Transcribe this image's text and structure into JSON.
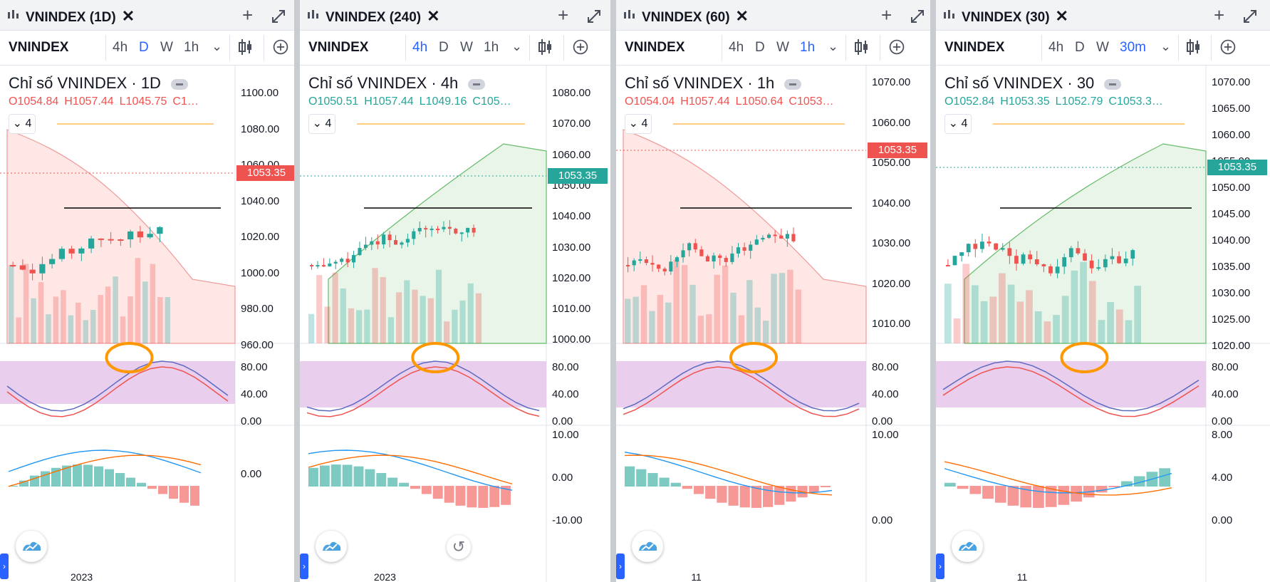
{
  "panels": [
    {
      "tab_title": "VNINDEX (1D)",
      "symbol": "VNINDEX",
      "timeframes": [
        "4h",
        "D",
        "W",
        "1h"
      ],
      "active_timeframe": "D",
      "legend_title": "Chỉ số VNINDEX · 1D",
      "ohlc": {
        "o": "O1054.84",
        "h": "H1057.44",
        "l": "L1045.75",
        "c": "C1…"
      },
      "ohlc_color": "#ef5350",
      "indicator_count": "4",
      "price_axis": [
        "1100.00",
        "1080.00",
        "1060.00",
        "1040.00",
        "1020.00",
        "1000.00",
        "980.00",
        "960.00"
      ],
      "price_label": "1053.35",
      "price_label_color": "#ef5350",
      "stoch_axis": [
        "80.00",
        "40.00",
        "0.00"
      ],
      "macd_axis": [
        "0.00"
      ],
      "time_axis": "2023"
    },
    {
      "tab_title": "VNINDEX (240)",
      "symbol": "VNINDEX",
      "timeframes": [
        "4h",
        "D",
        "W",
        "1h"
      ],
      "active_timeframe": "4h",
      "legend_title": "Chỉ số VNINDEX · 4h",
      "ohlc": {
        "o": "O1050.51",
        "h": "H1057.44",
        "l": "L1049.16",
        "c": "C105…"
      },
      "ohlc_color": "#26a69a",
      "indicator_count": "4",
      "price_axis": [
        "1080.00",
        "1070.00",
        "1060.00",
        "1050.00",
        "1040.00",
        "1030.00",
        "1020.00",
        "1010.00",
        "1000.00"
      ],
      "price_label": "1053.35",
      "price_label_color": "#26a69a",
      "stoch_axis": [
        "80.00",
        "40.00",
        "0.00"
      ],
      "macd_axis": [
        "10.00",
        "0.00",
        "-10.00"
      ],
      "time_axis": "2023"
    },
    {
      "tab_title": "VNINDEX (60)",
      "symbol": "VNINDEX",
      "timeframes": [
        "4h",
        "D",
        "W",
        "1h"
      ],
      "active_timeframe": "1h",
      "legend_title": "Chỉ số VNINDEX · 1h",
      "ohlc": {
        "o": "O1054.04",
        "h": "H1057.44",
        "l": "L1050.64",
        "c": "C1053…"
      },
      "ohlc_color": "#ef5350",
      "indicator_count": "4",
      "price_axis": [
        "1070.00",
        "1060.00",
        "1050.00",
        "1040.00",
        "1030.00",
        "1020.00",
        "1010.00"
      ],
      "price_label": "1053.35",
      "price_label_color": "#ef5350",
      "stoch_axis": [
        "80.00",
        "40.00",
        "0.00"
      ],
      "macd_axis": [
        "10.00",
        "0.00"
      ],
      "time_axis": "11"
    },
    {
      "tab_title": "VNINDEX (30)",
      "symbol": "VNINDEX",
      "timeframes": [
        "4h",
        "D",
        "W",
        "30m"
      ],
      "active_timeframe": "30m",
      "legend_title": "Chỉ số VNINDEX · 30",
      "ohlc": {
        "o": "O1052.84",
        "h": "H1053.35",
        "l": "L1052.79",
        "c": "C1053.3…"
      },
      "ohlc_color": "#26a69a",
      "indicator_count": "4",
      "price_axis": [
        "1070.00",
        "1065.00",
        "1060.00",
        "1055.00",
        "1050.00",
        "1045.00",
        "1040.00",
        "1035.00",
        "1030.00",
        "1025.00",
        "1020.00"
      ],
      "price_label": "1053.35",
      "price_label_color": "#26a69a",
      "stoch_axis": [
        "80.00",
        "40.00",
        "0.00"
      ],
      "macd_axis": [
        "8.00",
        "4.00",
        "0.00"
      ],
      "time_axis": "11"
    }
  ],
  "icons": {
    "chart": "candles-chart-icon",
    "close": "close-icon",
    "add": "plus-icon",
    "expand": "expand-icon",
    "chevron": "chevron-down-icon",
    "candles": "candlestick-type-icon",
    "indicators": "add-indicator-icon",
    "reset": "reset-chart-icon",
    "logo": "tradingview-logo-icon"
  },
  "colors": {
    "up": "#26a69a",
    "down": "#ef5350",
    "accent": "#2962ff",
    "annotation": "#ff9800",
    "stoch_band": "#e1bee7"
  }
}
